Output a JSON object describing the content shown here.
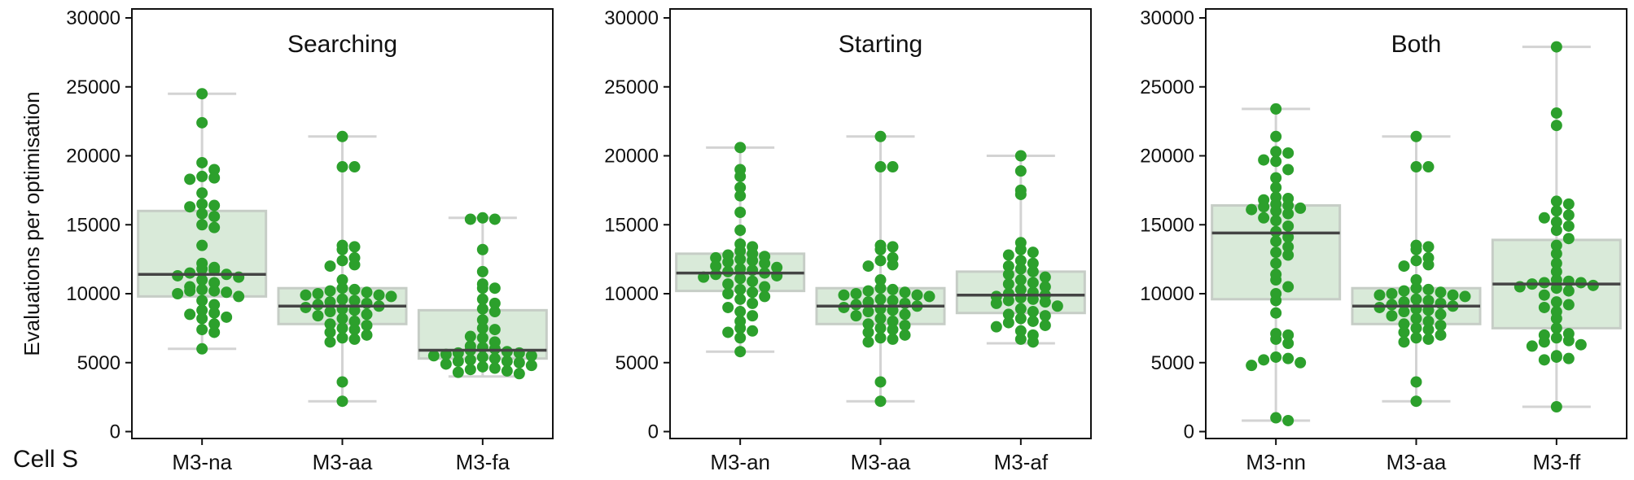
{
  "figure": {
    "ylabel": "Evaluations per optimisation",
    "corner_label": "Cell S",
    "colors": {
      "point": "#2ca02c",
      "box_fill": "#d9ead9",
      "box_edge": "#c6cdc6",
      "median": "#444444",
      "whisker": "#d3d3d3",
      "axis": "#111111"
    }
  },
  "chart_data": [
    {
      "type": "box_swarm",
      "title": "Searching",
      "ylim": [
        -500,
        30500
      ],
      "yticks": [
        0,
        5000,
        10000,
        15000,
        20000,
        25000,
        30000
      ],
      "categories": [
        "M3-na",
        "M3-aa",
        "M3-fa"
      ],
      "boxes": [
        {
          "q1": 9800,
          "median": 11400,
          "q3": 16000,
          "whisker_low": 6000,
          "whisker_high": 24500
        },
        {
          "q1": 7800,
          "median": 9100,
          "q3": 10400,
          "whisker_low": 2200,
          "whisker_high": 21400
        },
        {
          "q1": 5300,
          "median": 5900,
          "q3": 8800,
          "whisker_low": 4000,
          "whisker_high": 15500
        }
      ],
      "points": [
        [
          24500,
          22400,
          19500,
          19000,
          18500,
          18400,
          18300,
          17300,
          16500,
          16400,
          16300,
          15800,
          15600,
          15000,
          14800,
          13500,
          12200,
          11900,
          11800,
          11700,
          11500,
          11400,
          11300,
          11200,
          11000,
          10800,
          10500,
          10300,
          10200,
          10200,
          10100,
          10000,
          9800,
          9500,
          9200,
          8800,
          8600,
          8500,
          8300,
          8200,
          7800,
          7400,
          7200,
          6000
        ],
        [
          21400,
          19200,
          19200,
          13500,
          13400,
          13200,
          12600,
          12400,
          12100,
          12000,
          11000,
          10400,
          10300,
          10200,
          10100,
          10000,
          9900,
          9900,
          9800,
          9600,
          9500,
          9400,
          9300,
          9200,
          9100,
          9000,
          8900,
          8800,
          8700,
          8500,
          8400,
          8200,
          8000,
          7800,
          7700,
          7500,
          7400,
          7200,
          7000,
          6800,
          6700,
          6500,
          3600,
          2200
        ],
        [
          15500,
          15400,
          15400,
          13200,
          11600,
          10700,
          10400,
          10400,
          9600,
          9300,
          8900,
          8700,
          8100,
          7500,
          7400,
          6900,
          6800,
          6500,
          6200,
          6100,
          6000,
          5900,
          5800,
          5700,
          5700,
          5600,
          5500,
          5500,
          5400,
          5300,
          5200,
          5100,
          5100,
          5000,
          4900,
          4800,
          4700,
          4600,
          4500,
          4400,
          4300,
          4200
        ]
      ]
    },
    {
      "type": "box_swarm",
      "title": "Starting",
      "ylim": [
        -500,
        30500
      ],
      "yticks": [
        0,
        5000,
        10000,
        15000,
        20000,
        25000,
        30000
      ],
      "categories": [
        "M3-an",
        "M3-aa",
        "M3-af"
      ],
      "boxes": [
        {
          "q1": 10200,
          "median": 11500,
          "q3": 12900,
          "whisker_low": 5800,
          "whisker_high": 20600
        },
        {
          "q1": 7800,
          "median": 9100,
          "q3": 10400,
          "whisker_low": 2200,
          "whisker_high": 21400
        },
        {
          "q1": 8600,
          "median": 9900,
          "q3": 11600,
          "whisker_low": 6400,
          "whisker_high": 20000
        }
      ],
      "points": [
        [
          20600,
          19000,
          18500,
          17700,
          17100,
          15900,
          14600,
          13600,
          13400,
          13100,
          12900,
          12800,
          12700,
          12600,
          12500,
          12400,
          12300,
          12200,
          12000,
          11900,
          11800,
          11700,
          11600,
          11500,
          11400,
          11300,
          11200,
          11100,
          10900,
          10700,
          10500,
          10300,
          10100,
          10000,
          9800,
          9600,
          9300,
          9000,
          8700,
          8400,
          8000,
          7500,
          7300,
          7200,
          6800,
          5800
        ],
        [
          21400,
          19200,
          19200,
          13500,
          13400,
          13200,
          12600,
          12400,
          12100,
          12000,
          11000,
          10400,
          10300,
          10200,
          10100,
          10000,
          9900,
          9900,
          9800,
          9600,
          9500,
          9400,
          9300,
          9200,
          9100,
          9000,
          8900,
          8800,
          8700,
          8500,
          8400,
          8200,
          8000,
          7800,
          7700,
          7500,
          7400,
          7200,
          7000,
          6800,
          6700,
          6500,
          3600,
          2200
        ],
        [
          20000,
          18900,
          17500,
          17200,
          13700,
          13200,
          13000,
          12800,
          12400,
          12200,
          12000,
          11800,
          11600,
          11400,
          11200,
          11000,
          10800,
          10700,
          10500,
          10300,
          10100,
          10000,
          9900,
          9800,
          9700,
          9600,
          9500,
          9400,
          9300,
          9100,
          8900,
          8700,
          8500,
          8400,
          8200,
          8000,
          7900,
          7700,
          7600,
          7300,
          7000,
          6700,
          6500
        ]
      ]
    },
    {
      "type": "box_swarm",
      "title": "Both",
      "ylim": [
        -500,
        30500
      ],
      "yticks": [
        0,
        5000,
        10000,
        15000,
        20000,
        25000,
        30000
      ],
      "categories": [
        "M3-nn",
        "M3-aa",
        "M3-ff"
      ],
      "boxes": [
        {
          "q1": 9600,
          "median": 14400,
          "q3": 16400,
          "whisker_low": 800,
          "whisker_high": 23400
        },
        {
          "q1": 7800,
          "median": 9100,
          "q3": 10400,
          "whisker_low": 2200,
          "whisker_high": 21400
        },
        {
          "q1": 7500,
          "median": 10700,
          "q3": 13900,
          "whisker_low": 1800,
          "whisker_high": 27900
        }
      ],
      "points": [
        [
          23400,
          21400,
          20300,
          20200,
          19700,
          19600,
          19000,
          18400,
          17700,
          17000,
          16900,
          16800,
          16500,
          16400,
          16300,
          16200,
          16100,
          16000,
          15800,
          15500,
          15300,
          14900,
          14500,
          14100,
          13800,
          13400,
          13000,
          12800,
          12200,
          11400,
          11000,
          10500,
          10000,
          9500,
          8600,
          7100,
          7000,
          6700,
          6400,
          5400,
          5300,
          5200,
          5000,
          4800,
          1000,
          800
        ],
        [
          21400,
          19200,
          19200,
          13500,
          13400,
          13200,
          12600,
          12400,
          12100,
          12000,
          11000,
          10400,
          10300,
          10200,
          10100,
          10000,
          9900,
          9900,
          9800,
          9600,
          9500,
          9400,
          9300,
          9200,
          9100,
          9000,
          8900,
          8800,
          8700,
          8500,
          8400,
          8200,
          8000,
          7800,
          7700,
          7500,
          7400,
          7200,
          7000,
          6800,
          6700,
          6500,
          3600,
          2200
        ],
        [
          27900,
          23100,
          22200,
          16700,
          16500,
          16000,
          15700,
          15500,
          15200,
          14900,
          14600,
          14000,
          13500,
          12900,
          12200,
          11600,
          11000,
          10900,
          10800,
          10800,
          10700,
          10600,
          10500,
          10400,
          10200,
          9900,
          9400,
          9200,
          9000,
          8700,
          8200,
          7500,
          7100,
          7000,
          6800,
          6600,
          6500,
          6300,
          6200,
          5500,
          5400,
          5300,
          5200,
          1800
        ]
      ]
    }
  ]
}
